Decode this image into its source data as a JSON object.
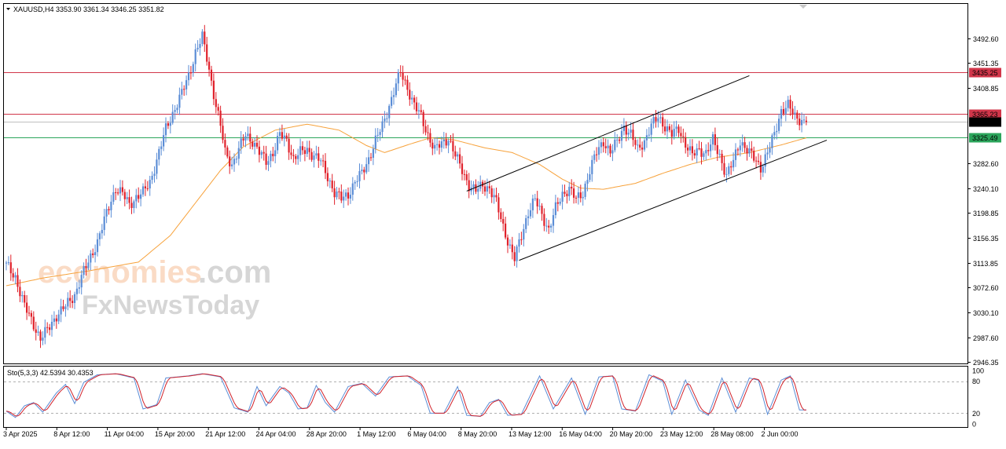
{
  "header": {
    "symbol_line": "XAUUSD,H4  3353.90 3361.34 3346.25 3351.82",
    "stoch_line": "Sto(5,3,3) 42.5394 30.4353"
  },
  "watermark": {
    "brand_a": "economies",
    "brand_b": ".com",
    "brand_c": "FxNewsToday"
  },
  "colors": {
    "bull": "#5b8dd6",
    "bear": "#e0212b",
    "ma": "#f7a23b",
    "resistance": "#d1364a",
    "support": "#2ba55b",
    "stoch_main": "#5b8dd6",
    "stoch_signal": "#d1222b"
  },
  "chart_data": [
    {
      "type": "candlestick",
      "symbol": "XAUUSD",
      "timeframe": "H4",
      "ohlc_last": {
        "open": 3353.9,
        "high": 3361.34,
        "low": 3346.25,
        "close": 3351.82
      },
      "ylim": [
        2946.35,
        3534.0
      ],
      "y_ticks": [
        "3492.60",
        "3451.35",
        "3408.85",
        "3365.23",
        "3351.82",
        "3325.49",
        "3282.60",
        "3240.10",
        "3198.85",
        "3156.35",
        "3113.85",
        "3072.60",
        "3030.10",
        "2987.60",
        "2946.35"
      ],
      "x_ticks": [
        "3 Apr 2025",
        "8 Apr 12:00",
        "11 Apr 04:00",
        "15 Apr 20:00",
        "21 Apr 12:00",
        "24 Apr 04:00",
        "28 Apr 20:00",
        "1 May 12:00",
        "6 May 04:00",
        "8 May 20:00",
        "13 May 12:00",
        "16 May 04:00",
        "20 May 20:00",
        "23 May 12:00",
        "28 May 08:00",
        "2 Jun 00:00"
      ],
      "horizontal_levels": [
        {
          "value": 3435.25,
          "label": "3435.25",
          "color": "#d1364a"
        },
        {
          "value": 3365.23,
          "label": "3365.23",
          "color": "#d1364a"
        },
        {
          "value": 3351.82,
          "label": "3351.82",
          "color": "#000000"
        },
        {
          "value": 3325.49,
          "label": "3325.49",
          "color": "#2ba55b"
        }
      ],
      "price_path": [
        [
          0,
          3110
        ],
        [
          4,
          3090
        ],
        [
          8,
          3040
        ],
        [
          12,
          3010
        ],
        [
          15,
          2985
        ],
        [
          18,
          3000
        ],
        [
          22,
          3025
        ],
        [
          26,
          3040
        ],
        [
          30,
          3060
        ],
        [
          33,
          3090
        ],
        [
          36,
          3115
        ],
        [
          40,
          3150
        ],
        [
          43,
          3185
        ],
        [
          46,
          3220
        ],
        [
          48,
          3240
        ],
        [
          51,
          3230
        ],
        [
          54,
          3212
        ],
        [
          57,
          3225
        ],
        [
          60,
          3232
        ],
        [
          63,
          3250
        ],
        [
          67,
          3300
        ],
        [
          70,
          3340
        ],
        [
          74,
          3375
        ],
        [
          77,
          3400
        ],
        [
          80,
          3430
        ],
        [
          83,
          3470
        ],
        [
          86,
          3495
        ],
        [
          88,
          3460
        ],
        [
          90,
          3420
        ],
        [
          92,
          3380
        ],
        [
          94,
          3345
        ],
        [
          96,
          3300
        ],
        [
          99,
          3280
        ],
        [
          102,
          3305
        ],
        [
          105,
          3330
        ],
        [
          108,
          3320
        ],
        [
          111,
          3300
        ],
        [
          114,
          3285
        ],
        [
          117,
          3300
        ],
        [
          120,
          3330
        ],
        [
          123,
          3320
        ],
        [
          126,
          3290
        ],
        [
          129,
          3300
        ],
        [
          132,
          3305
        ],
        [
          135,
          3295
        ],
        [
          138,
          3285
        ],
        [
          141,
          3260
        ],
        [
          144,
          3232
        ],
        [
          147,
          3222
        ],
        [
          150,
          3230
        ],
        [
          153,
          3250
        ],
        [
          156,
          3265
        ],
        [
          159,
          3290
        ],
        [
          162,
          3320
        ],
        [
          165,
          3345
        ],
        [
          168,
          3380
        ],
        [
          171,
          3415
        ],
        [
          173,
          3435
        ],
        [
          176,
          3410
        ],
        [
          179,
          3380
        ],
        [
          182,
          3360
        ],
        [
          185,
          3330
        ],
        [
          188,
          3305
        ],
        [
          191,
          3315
        ],
        [
          194,
          3325
        ],
        [
          197,
          3295
        ],
        [
          200,
          3270
        ],
        [
          203,
          3245
        ],
        [
          206,
          3235
        ],
        [
          209,
          3245
        ],
        [
          212,
          3240
        ],
        [
          215,
          3215
        ],
        [
          218,
          3175
        ],
        [
          221,
          3140
        ],
        [
          223,
          3120
        ],
        [
          226,
          3160
        ],
        [
          229,
          3200
        ],
        [
          232,
          3220
        ],
        [
          235,
          3195
        ],
        [
          238,
          3170
        ],
        [
          241,
          3205
        ],
        [
          244,
          3230
        ],
        [
          247,
          3240
        ],
        [
          250,
          3220
        ],
        [
          253,
          3232
        ],
        [
          256,
          3270
        ],
        [
          259,
          3300
        ],
        [
          262,
          3320
        ],
        [
          265,
          3300
        ],
        [
          268,
          3318
        ],
        [
          271,
          3345
        ],
        [
          274,
          3330
        ],
        [
          277,
          3305
        ],
        [
          280,
          3320
        ],
        [
          283,
          3345
        ],
        [
          286,
          3360
        ],
        [
          289,
          3345
        ],
        [
          292,
          3330
        ],
        [
          295,
          3340
        ],
        [
          298,
          3315
        ],
        [
          301,
          3295
        ],
        [
          304,
          3305
        ],
        [
          307,
          3300
        ],
        [
          310,
          3320
        ],
        [
          313,
          3295
        ],
        [
          316,
          3262
        ],
        [
          319,
          3285
        ],
        [
          322,
          3320
        ],
        [
          325,
          3305
        ],
        [
          328,
          3290
        ],
        [
          331,
          3275
        ],
        [
          334,
          3300
        ],
        [
          337,
          3330
        ],
        [
          340,
          3372
        ],
        [
          343,
          3380
        ],
        [
          346,
          3360
        ],
        [
          349,
          3355
        ],
        [
          351,
          3352
        ]
      ],
      "moving_average": [
        [
          0,
          3075
        ],
        [
          16,
          3088
        ],
        [
          36,
          3100
        ],
        [
          58,
          3115
        ],
        [
          72,
          3160
        ],
        [
          84,
          3220
        ],
        [
          94,
          3270
        ],
        [
          104,
          3310
        ],
        [
          118,
          3338
        ],
        [
          132,
          3348
        ],
        [
          146,
          3338
        ],
        [
          158,
          3312
        ],
        [
          166,
          3300
        ],
        [
          176,
          3313
        ],
        [
          186,
          3325
        ],
        [
          196,
          3322
        ],
        [
          210,
          3308
        ],
        [
          222,
          3300
        ],
        [
          234,
          3280
        ],
        [
          244,
          3255
        ],
        [
          252,
          3240
        ],
        [
          262,
          3238
        ],
        [
          276,
          3248
        ],
        [
          288,
          3265
        ],
        [
          300,
          3280
        ],
        [
          312,
          3292
        ],
        [
          326,
          3300
        ],
        [
          340,
          3313
        ],
        [
          351,
          3325
        ]
      ],
      "trendlines": [
        {
          "from": [
            202,
            3235
          ],
          "to": [
            326,
            3430
          ]
        },
        {
          "from": [
            225,
            3118
          ],
          "to": [
            360,
            3321
          ]
        }
      ]
    },
    {
      "type": "line",
      "indicator": "Stochastic",
      "title": "Sto(5,3,3) 42.5394 30.4353",
      "ylim": [
        0,
        100
      ],
      "y_ticks": [
        "100",
        "80",
        "20",
        "0"
      ],
      "levels": [
        80,
        20
      ],
      "turning_points": [
        [
          0,
          24
        ],
        [
          4,
          12
        ],
        [
          8,
          34
        ],
        [
          12,
          40
        ],
        [
          16,
          22
        ],
        [
          22,
          58
        ],
        [
          26,
          74
        ],
        [
          30,
          38
        ],
        [
          34,
          78
        ],
        [
          40,
          92
        ],
        [
          48,
          94
        ],
        [
          56,
          86
        ],
        [
          60,
          28
        ],
        [
          66,
          36
        ],
        [
          70,
          86
        ],
        [
          80,
          90
        ],
        [
          86,
          94
        ],
        [
          94,
          88
        ],
        [
          100,
          30
        ],
        [
          106,
          22
        ],
        [
          110,
          70
        ],
        [
          114,
          34
        ],
        [
          120,
          70
        ],
        [
          124,
          58
        ],
        [
          128,
          28
        ],
        [
          132,
          30
        ],
        [
          136,
          72
        ],
        [
          140,
          40
        ],
        [
          144,
          22
        ],
        [
          150,
          70
        ],
        [
          156,
          76
        ],
        [
          162,
          52
        ],
        [
          168,
          88
        ],
        [
          176,
          90
        ],
        [
          182,
          72
        ],
        [
          186,
          20
        ],
        [
          192,
          20
        ],
        [
          198,
          70
        ],
        [
          202,
          16
        ],
        [
          208,
          14
        ],
        [
          212,
          40
        ],
        [
          216,
          46
        ],
        [
          220,
          16
        ],
        [
          226,
          18
        ],
        [
          234,
          90
        ],
        [
          240,
          28
        ],
        [
          248,
          86
        ],
        [
          254,
          18
        ],
        [
          260,
          88
        ],
        [
          266,
          90
        ],
        [
          270,
          28
        ],
        [
          276,
          24
        ],
        [
          282,
          92
        ],
        [
          288,
          80
        ],
        [
          292,
          18
        ],
        [
          298,
          82
        ],
        [
          304,
          26
        ],
        [
          308,
          16
        ],
        [
          314,
          86
        ],
        [
          320,
          22
        ],
        [
          326,
          86
        ],
        [
          330,
          82
        ],
        [
          334,
          18
        ],
        [
          340,
          82
        ],
        [
          344,
          90
        ],
        [
          348,
          26
        ],
        [
          351,
          26
        ]
      ]
    }
  ]
}
